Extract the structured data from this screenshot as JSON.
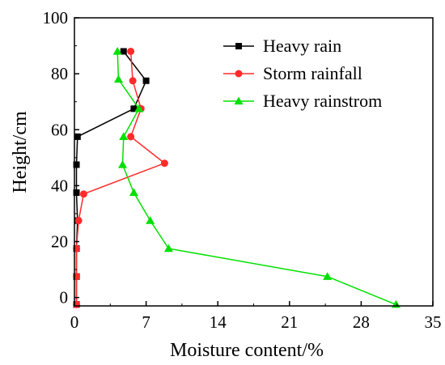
{
  "chart_data": {
    "type": "line",
    "title": "",
    "xlabel": "Moisture content/%",
    "ylabel": "Height/cm",
    "xlim": [
      0,
      35
    ],
    "ylim": [
      -3,
      100
    ],
    "xticks": [
      0,
      7,
      14,
      21,
      28,
      35
    ],
    "yticks": [
      0,
      20,
      40,
      60,
      80,
      100
    ],
    "x_tick_labels": [
      "0",
      "7",
      "14",
      "21",
      "28",
      "35"
    ],
    "y_tick_labels": [
      "0",
      "20",
      "40",
      "60",
      "80",
      "100"
    ],
    "grid": false,
    "legend_position": "top-right",
    "series": [
      {
        "name": "Heavy rain",
        "color": "#000000",
        "marker": "square",
        "points": [
          [
            4.8,
            88
          ],
          [
            7.0,
            77.5
          ],
          [
            5.8,
            67.5
          ],
          [
            0.3,
            57.5
          ],
          [
            0.2,
            47.5
          ],
          [
            0.2,
            37.5
          ],
          [
            0.3,
            27.5
          ],
          [
            0.2,
            17.5
          ],
          [
            0.2,
            7.5
          ],
          [
            0.2,
            -2.5
          ]
        ]
      },
      {
        "name": "Storm rainfall",
        "color": "#ff2a2a",
        "marker": "circle",
        "points": [
          [
            5.5,
            88
          ],
          [
            5.7,
            77.5
          ],
          [
            6.5,
            67.5
          ],
          [
            5.5,
            57.5
          ],
          [
            8.8,
            48
          ],
          [
            0.9,
            37
          ],
          [
            0.4,
            27.5
          ],
          [
            0.2,
            17.5
          ],
          [
            0.2,
            7.5
          ],
          [
            0.2,
            -2.5
          ]
        ]
      },
      {
        "name": "Heavy rainstrom",
        "color": "#00e000",
        "marker": "triangle",
        "points": [
          [
            4.2,
            88
          ],
          [
            4.3,
            78
          ],
          [
            6.3,
            67.5
          ],
          [
            4.8,
            57.5
          ],
          [
            4.7,
            47.5
          ],
          [
            5.8,
            37.5
          ],
          [
            7.4,
            27.5
          ],
          [
            9.2,
            17.5
          ],
          [
            24.7,
            7.5
          ],
          [
            31.4,
            -2.5
          ]
        ]
      }
    ]
  }
}
